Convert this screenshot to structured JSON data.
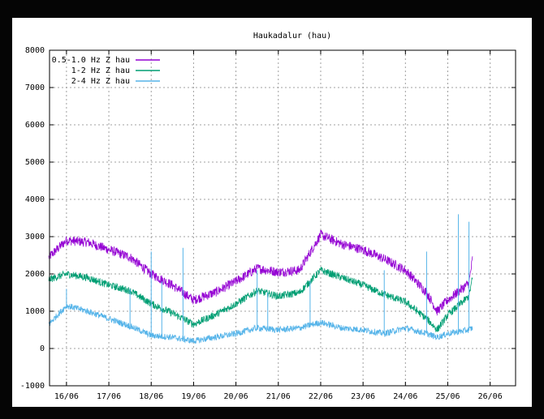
{
  "chart_data": {
    "type": "line",
    "title": "Haukadalur (hau)",
    "xlabel": "",
    "ylabel": "",
    "ylim": [
      -1000,
      8000
    ],
    "yticks": [
      -1000,
      0,
      1000,
      2000,
      3000,
      4000,
      5000,
      6000,
      7000,
      8000
    ],
    "xlim_days": [
      15.6,
      26.6
    ],
    "x_tick_labels": [
      "16/06",
      "17/06",
      "18/06",
      "19/06",
      "20/06",
      "21/06",
      "22/06",
      "23/06",
      "24/06",
      "25/06",
      "26/06"
    ],
    "grid": true,
    "legend_position": "top-left",
    "series": [
      {
        "name": "0.5-1.0 Hz Z hau",
        "color": "#9400d3",
        "points": [
          [
            "15/06 14:00",
            2450
          ],
          [
            "16/06 00:00",
            2900
          ],
          [
            "16/06 12:00",
            2850
          ],
          [
            "17/06 00:00",
            2650
          ],
          [
            "17/06 12:00",
            2450
          ],
          [
            "18/06 00:00",
            2000
          ],
          [
            "18/06 12:00",
            1700
          ],
          [
            "19/06 00:00",
            1300
          ],
          [
            "19/06 12:00",
            1500
          ],
          [
            "20/06 00:00",
            1800
          ],
          [
            "20/06 12:00",
            2150
          ],
          [
            "21/06 00:00",
            2050
          ],
          [
            "21/06 12:00",
            2100
          ],
          [
            "22/06 00:00",
            3050
          ],
          [
            "22/06 12:00",
            2800
          ],
          [
            "23/06 00:00",
            2650
          ],
          [
            "23/06 12:00",
            2400
          ],
          [
            "24/06 00:00",
            2100
          ],
          [
            "24/06 12:00",
            1500
          ],
          [
            "24/06 18:00",
            1000
          ],
          [
            "25/06 00:00",
            1300
          ],
          [
            "25/06 12:00",
            1750
          ],
          [
            "25/06 14:00",
            2400
          ]
        ]
      },
      {
        "name": "1-2 Hz Z hau",
        "color": "#009e73",
        "points": [
          [
            "15/06 14:00",
            1850
          ],
          [
            "16/06 00:00",
            2000
          ],
          [
            "16/06 12:00",
            1900
          ],
          [
            "17/06 00:00",
            1700
          ],
          [
            "17/06 12:00",
            1550
          ],
          [
            "18/06 00:00",
            1200
          ],
          [
            "18/06 12:00",
            950
          ],
          [
            "19/06 00:00",
            650
          ],
          [
            "19/06 12:00",
            900
          ],
          [
            "20/06 00:00",
            1200
          ],
          [
            "20/06 12:00",
            1550
          ],
          [
            "21/06 00:00",
            1400
          ],
          [
            "21/06 12:00",
            1500
          ],
          [
            "22/06 00:00",
            2100
          ],
          [
            "22/06 12:00",
            1900
          ],
          [
            "23/06 00:00",
            1700
          ],
          [
            "23/06 12:00",
            1450
          ],
          [
            "24/06 00:00",
            1250
          ],
          [
            "24/06 12:00",
            800
          ],
          [
            "24/06 18:00",
            500
          ],
          [
            "25/06 00:00",
            900
          ],
          [
            "25/06 12:00",
            1400
          ],
          [
            "25/06 14:00",
            1900
          ]
        ]
      },
      {
        "name": "2-4 Hz Z hau",
        "color": "#56b4e9",
        "points": [
          [
            "15/06 14:00",
            650
          ],
          [
            "16/06 00:00",
            1150
          ],
          [
            "16/06 12:00",
            1000
          ],
          [
            "17/06 00:00",
            800
          ],
          [
            "17/06 12:00",
            600
          ],
          [
            "18/06 00:00",
            350
          ],
          [
            "18/06 12:00",
            300
          ],
          [
            "19/06 00:00",
            200
          ],
          [
            "19/06 12:00",
            300
          ],
          [
            "20/06 00:00",
            400
          ],
          [
            "20/06 12:00",
            550
          ],
          [
            "21/06 00:00",
            500
          ],
          [
            "21/06 12:00",
            550
          ],
          [
            "22/06 00:00",
            700
          ],
          [
            "22/06 12:00",
            550
          ],
          [
            "23/06 00:00",
            500
          ],
          [
            "23/06 12:00",
            400
          ],
          [
            "24/06 00:00",
            550
          ],
          [
            "24/06 12:00",
            400
          ],
          [
            "24/06 18:00",
            300
          ],
          [
            "25/06 00:00",
            400
          ],
          [
            "25/06 12:00",
            500
          ],
          [
            "25/06 14:00",
            550
          ]
        ],
        "spikes": [
          [
            "16/06 00:00",
            1600
          ],
          [
            "17/06 12:00",
            1600
          ],
          [
            "18/06 00:00",
            2600
          ],
          [
            "18/06 06:00",
            1800
          ],
          [
            "18/06 18:00",
            2700
          ],
          [
            "20/06 12:00",
            2100
          ],
          [
            "20/06 18:00",
            1500
          ],
          [
            "21/06 18:00",
            1800
          ],
          [
            "23/06 12:00",
            2100
          ],
          [
            "24/06 12:00",
            2600
          ],
          [
            "25/06 06:00",
            3600
          ],
          [
            "25/06 12:00",
            3400
          ]
        ]
      }
    ]
  }
}
